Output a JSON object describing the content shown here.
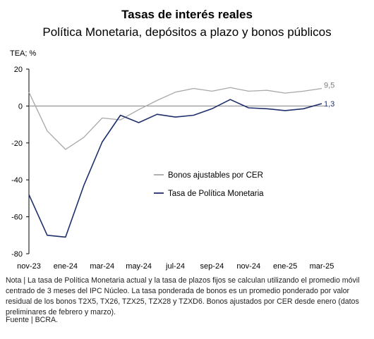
{
  "header": {
    "title": "Tasas de interés reales",
    "subtitle": "Política Monetaria, depósitos a plazo y bonos públicos"
  },
  "footer": {
    "note": "Nota | La tasa de Política Monetaria actual y la tasa de plazos fijos se calculan utilizando el promedio móvil centrado de 3 meses del IPC Núcleo. La tasa ponderada de bonos es un promedio ponderado por valor residual de los bonos T2X5, TX26, TZX25, TZX28 y TZXD6. Bonos ajustados por CER desde enero (datos preliminares de febrero y marzo).",
    "source": "Fuente | BCRA."
  },
  "colors": {
    "cer": "#a8a8a8",
    "tpm": "#1f2f6b",
    "zero_line": "#808080",
    "axis": "#000000"
  },
  "chart_data": {
    "type": "line",
    "ylabel": "TEA; %",
    "ylim": [
      -80,
      20
    ],
    "yticks": [
      20,
      0,
      -20,
      -40,
      -60,
      -80
    ],
    "x_labels": [
      "nov-23",
      "ene-24",
      "mar-24",
      "may-24",
      "jul-24",
      "sep-24",
      "nov-24",
      "ene-25",
      "mar-25"
    ],
    "x": [
      "nov-23",
      "dic-23",
      "ene-24",
      "feb-24",
      "mar-24",
      "abr-24",
      "may-24",
      "jun-24",
      "jul-24",
      "ago-24",
      "sep-24",
      "oct-24",
      "nov-24",
      "dic-24",
      "ene-25",
      "feb-25",
      "mar-25"
    ],
    "legend_position": "center-right",
    "series": [
      {
        "name": "Bonos ajustables por CER",
        "color": "#a8a8a8",
        "values": [
          7.5,
          -13.5,
          -23.5,
          -17,
          -6.5,
          -7.5,
          -2,
          3,
          7.5,
          9.5,
          8,
          10,
          8,
          8.5,
          7,
          8,
          9.5
        ],
        "end_label": "9,5"
      },
      {
        "name": "Tasa de Política Monetaria",
        "color": "#1f2f6b",
        "values": [
          -48,
          -70,
          -71,
          -43,
          -19.5,
          -5,
          -9,
          -4.5,
          -6,
          -5,
          -1.5,
          3.5,
          -1,
          -1.5,
          -2.5,
          -1.5,
          1.3
        ],
        "end_label": "1,3"
      }
    ]
  }
}
